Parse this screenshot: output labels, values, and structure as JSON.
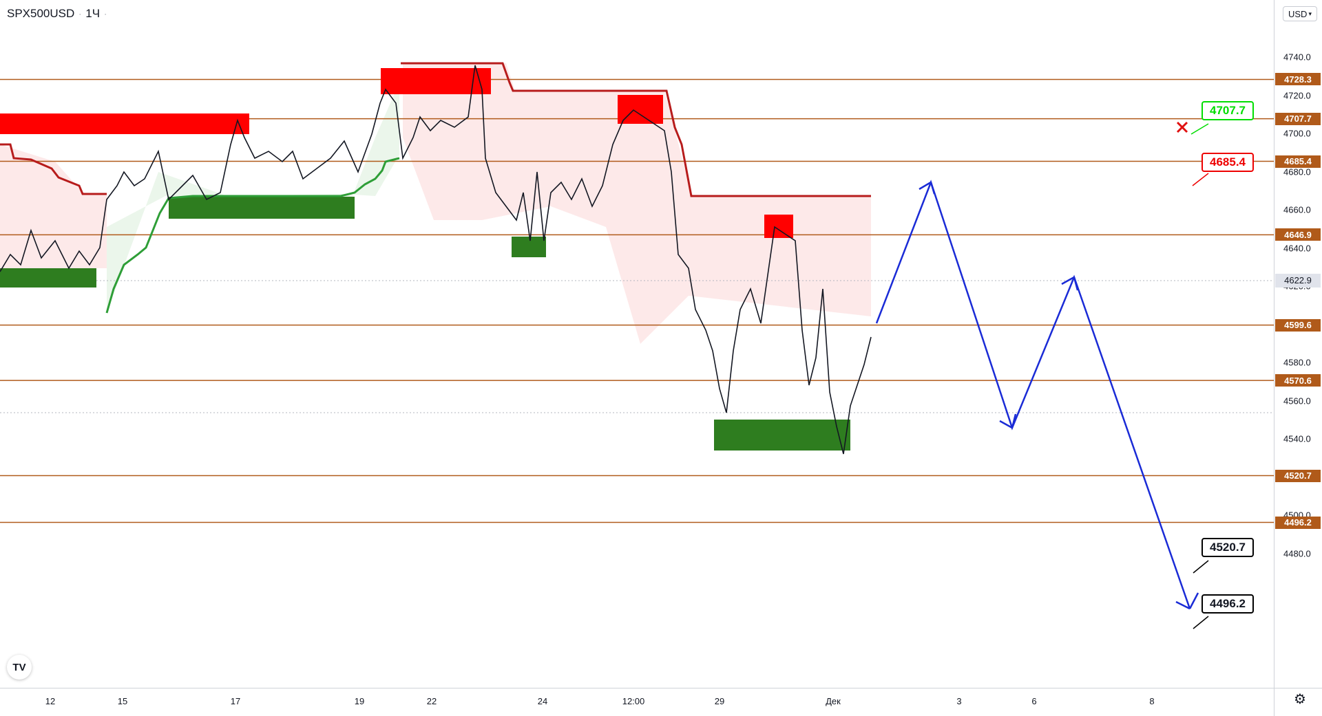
{
  "header": {
    "symbol": "SPX500USD",
    "interval": "1Ч"
  },
  "currency": "USD",
  "price_axis": {
    "ticks": [
      "4740.0",
      "4720.0",
      "4700.0",
      "4680.0",
      "4660.0",
      "4640.0",
      "4620.0",
      "4600.0",
      "4580.0",
      "4560.0",
      "4540.0",
      "4520.0",
      "4500.0",
      "4480.0"
    ],
    "tick_values": [
      4740,
      4720,
      4700,
      4680,
      4660,
      4640,
      4620,
      4600,
      4580,
      4560,
      4540,
      4520,
      4500,
      4480
    ]
  },
  "time_axis": {
    "labels": [
      "12",
      "15",
      "17",
      "19",
      "22",
      "24",
      "12:00",
      "29",
      "Дек",
      "3",
      "6",
      "8"
    ]
  },
  "levels": [
    {
      "label": "4728.3",
      "value": 4728.3
    },
    {
      "label": "4707.7",
      "value": 4707.7
    },
    {
      "label": "4685.4",
      "value": 4685.4
    },
    {
      "label": "4646.9",
      "value": 4646.9
    },
    {
      "label": "4599.6",
      "value": 4599.6
    },
    {
      "label": "4570.6",
      "value": 4570.6
    },
    {
      "label": "4520.7",
      "value": 4520.7
    },
    {
      "label": "4496.2",
      "value": 4496.2
    }
  ],
  "current_price": {
    "label": "4622.9",
    "value": 4622.9
  },
  "callouts": [
    {
      "text": "4707.7",
      "color": "#00dd00"
    },
    {
      "text": "4685.4",
      "color": "#ee0000"
    },
    {
      "text": "4520.7",
      "color": "#000000"
    },
    {
      "text": "4496.2",
      "color": "#000000"
    }
  ],
  "colors": {
    "level_line": "#b05a1a",
    "supply_zone": "#ff0000",
    "demand_zone": "#2e7d1f",
    "forecast": "#1a2bd6",
    "trail_red": "#b71c1c",
    "trail_green": "#2e9e37"
  },
  "icons": {
    "logo": "tradingview-logo-icon",
    "settings": "gear-icon",
    "target_hit": "x-mark-icon"
  },
  "logo_text": "TV"
}
